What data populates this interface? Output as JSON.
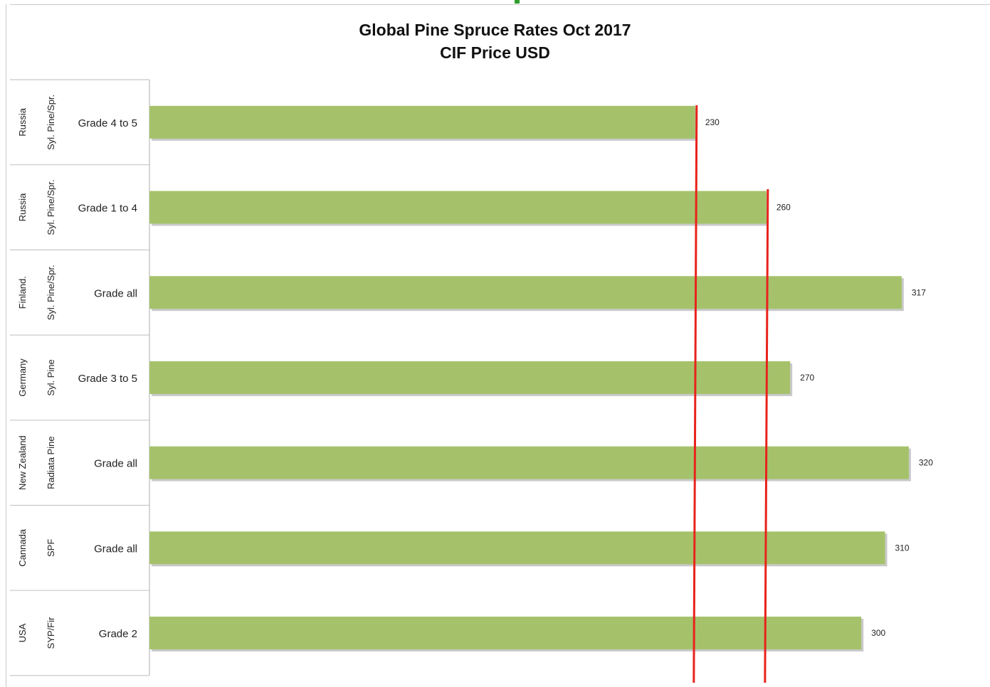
{
  "chart_data": {
    "type": "bar",
    "orientation": "horizontal",
    "title": "Global Pine Spruce Rates Oct 2017",
    "subtitle": "CIF Price USD",
    "categories": [
      {
        "country": "Russia",
        "species": "Syl. Pine/Spr.",
        "grade": "Grade 4 to 5"
      },
      {
        "country": "Russia",
        "species": "Syl. Pine/Spr.",
        "grade": "Grade 1 to 4"
      },
      {
        "country": "Finland.",
        "species": "Syl. Pine/Spr.",
        "grade": "Grade all"
      },
      {
        "country": "Germany",
        "species": "Syl. Pine",
        "grade": "Grade 3 to 5"
      },
      {
        "country": "New Zealand",
        "species": "Radiata Pine",
        "grade": "Grade all"
      },
      {
        "country": "Cannada",
        "species": "SPF",
        "grade": "Grade all"
      },
      {
        "country": "USA",
        "species": "SYP/Fir",
        "grade": "Grade 2"
      }
    ],
    "values": [
      230,
      260,
      317,
      270,
      320,
      310,
      300
    ],
    "value_labels": [
      "230",
      "260",
      "317",
      "270",
      "320",
      "310",
      "300"
    ],
    "reference_lines": [
      230,
      260
    ],
    "xlim": [
      0,
      320
    ],
    "grid": false,
    "legend": "none",
    "colors": {
      "bar": "#a5c26b",
      "bar_shadow": "#c9c9c9",
      "reference_line": "#e8231b",
      "axis": "#c8c8c8"
    }
  }
}
